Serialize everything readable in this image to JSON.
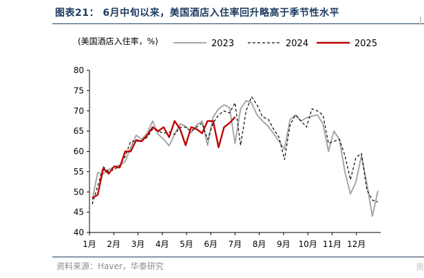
{
  "header": {
    "title": "图表21： 6月中旬以来，美国酒店入住率回升略高于季节性水平"
  },
  "footer": {
    "source": "资料来源：Haver，华泰研究",
    "edge_char": "资"
  },
  "chart_data": {
    "type": "line",
    "title": "图表21： 6月中旬以来，美国酒店入住率回升略高于季节性水平",
    "ylabel": "(美国酒店入住率，%)",
    "xlabel": "",
    "ylim": [
      40,
      80
    ],
    "yticks": [
      40,
      45,
      50,
      55,
      60,
      65,
      70,
      75,
      80
    ],
    "categories": [
      "1月",
      "2月",
      "3月",
      "4月",
      "5月",
      "6月",
      "7月",
      "8月",
      "9月",
      "10月",
      "11月",
      "12月"
    ],
    "x_unit": "week of year",
    "grid": false,
    "legend_position": "top",
    "series": [
      {
        "name": "2023",
        "color": "#a6a6a6",
        "style": "solid",
        "x": [
          1,
          2,
          3,
          4,
          5,
          6,
          7,
          8,
          9,
          10,
          11,
          12,
          13,
          14,
          15,
          16,
          17,
          18,
          19,
          20,
          21,
          22,
          23,
          24,
          25,
          26,
          27,
          28,
          29,
          30,
          31,
          32,
          33,
          34,
          35,
          36,
          37,
          38,
          39,
          40,
          41,
          42,
          43,
          44,
          45,
          46,
          47,
          48,
          49,
          50,
          51,
          52,
          53
        ],
        "values": [
          48.0,
          54.8,
          54.5,
          55.5,
          56.2,
          56.6,
          57.5,
          61.0,
          64.0,
          63.0,
          64.5,
          67.5,
          64.2,
          63.0,
          61.4,
          64.2,
          66.8,
          66.2,
          64.6,
          66.5,
          67.5,
          61.5,
          68.5,
          70.5,
          71.5,
          70.8,
          62.0,
          70.5,
          72.5,
          72.0,
          69.0,
          67.5,
          66.2,
          64.5,
          62.5,
          60.5,
          67.8,
          69.0,
          67.5,
          68.3,
          68.7,
          69.0,
          66.8,
          60.0,
          65.0,
          63.0,
          55.0,
          49.5,
          52.5,
          59.0,
          52.0,
          44.0,
          50.3
        ]
      },
      {
        "name": "2024",
        "color": "#000000",
        "style": "dashed",
        "x": [
          1,
          2,
          3,
          4,
          5,
          6,
          7,
          8,
          9,
          10,
          11,
          12,
          13,
          14,
          15,
          16,
          17,
          18,
          19,
          20,
          21,
          22,
          23,
          24,
          25,
          26,
          27,
          28,
          29,
          30,
          31,
          32,
          33,
          34,
          35,
          36,
          37,
          38,
          39,
          40,
          41,
          42,
          43,
          44,
          45,
          46,
          47,
          48,
          49,
          50,
          51,
          52,
          53
        ],
        "values": [
          47.0,
          51.5,
          56.2,
          55.0,
          55.5,
          56.5,
          58.8,
          62.5,
          62.5,
          62.5,
          63.5,
          65.5,
          65.0,
          64.5,
          64.8,
          64.2,
          66.0,
          66.0,
          65.0,
          66.0,
          67.0,
          63.0,
          67.0,
          69.0,
          70.0,
          69.5,
          72.0,
          61.5,
          70.0,
          73.5,
          71.5,
          68.5,
          68.0,
          65.5,
          63.5,
          58.0,
          66.5,
          69.0,
          67.5,
          66.0,
          70.5,
          70.0,
          69.0,
          62.0,
          62.5,
          63.0,
          59.0,
          53.0,
          58.5,
          59.5,
          50.5,
          48.0,
          47.5
        ]
      },
      {
        "name": "2025",
        "color": "#c00000",
        "style": "solid",
        "x": [
          1,
          2,
          3,
          4,
          5,
          6,
          7,
          8,
          9,
          10,
          11,
          12,
          13,
          14,
          15,
          16,
          17,
          18,
          19,
          20,
          21,
          22,
          23,
          24,
          25,
          26,
          27
        ],
        "values": [
          48.5,
          49.3,
          55.8,
          54.5,
          56.3,
          56.0,
          60.0,
          60.0,
          62.8,
          62.5,
          64.0,
          66.0,
          65.0,
          66.0,
          63.5,
          67.5,
          65.5,
          61.5,
          66.0,
          65.5,
          64.5,
          67.5,
          67.5,
          61.0,
          66.0,
          67.0,
          68.5
        ]
      }
    ]
  }
}
